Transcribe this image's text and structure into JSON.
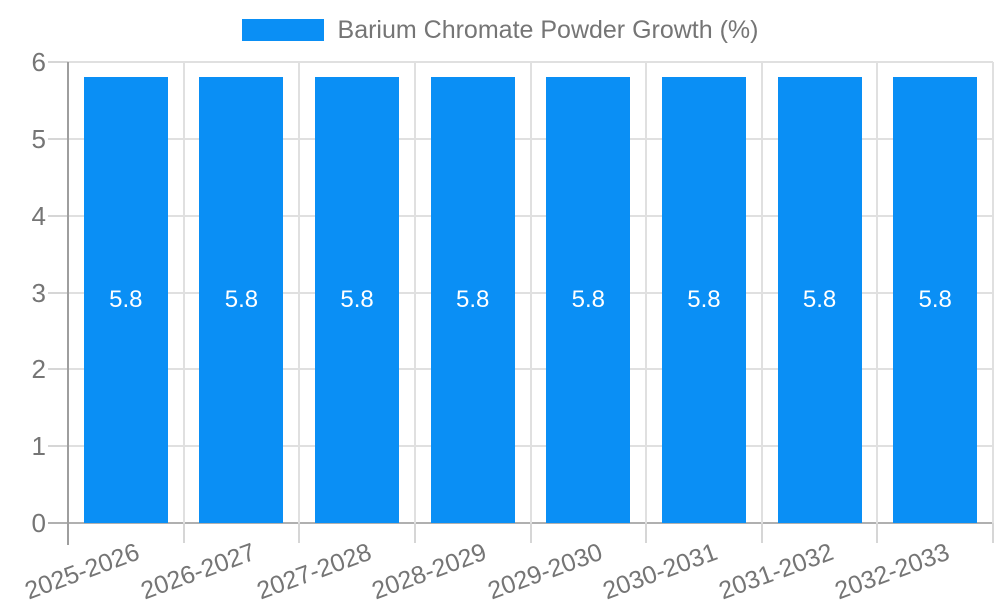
{
  "legend": {
    "label": "Barium Chromate Powder Growth (%)"
  },
  "chart_data": {
    "type": "bar",
    "title": "",
    "categories": [
      "2025-2026",
      "2026-2027",
      "2027-2028",
      "2028-2029",
      "2029-2030",
      "2030-2031",
      "2031-2032",
      "2032-2033"
    ],
    "series": [
      {
        "name": "Barium Chromate Powder Growth (%)",
        "values": [
          5.8,
          5.8,
          5.8,
          5.8,
          5.8,
          5.8,
          5.8,
          5.8
        ]
      }
    ],
    "value_label_decimals": 1,
    "xlabel": "",
    "ylabel": "",
    "ylim": [
      0,
      6
    ],
    "yticks": [
      0,
      1,
      2,
      3,
      4,
      5,
      6
    ],
    "grid": true,
    "legend_position": "top-center",
    "colors": {
      "bar": "#0a8ff5",
      "value_label": "#ffffff",
      "tick_label": "#757575",
      "legend_text": "#757575",
      "gridline": "#e0e0e0",
      "baseline": "#b0b0b0",
      "axis_line": "#9e9e9e",
      "tick": "#d6d6d6",
      "background": "#ffffff"
    }
  }
}
